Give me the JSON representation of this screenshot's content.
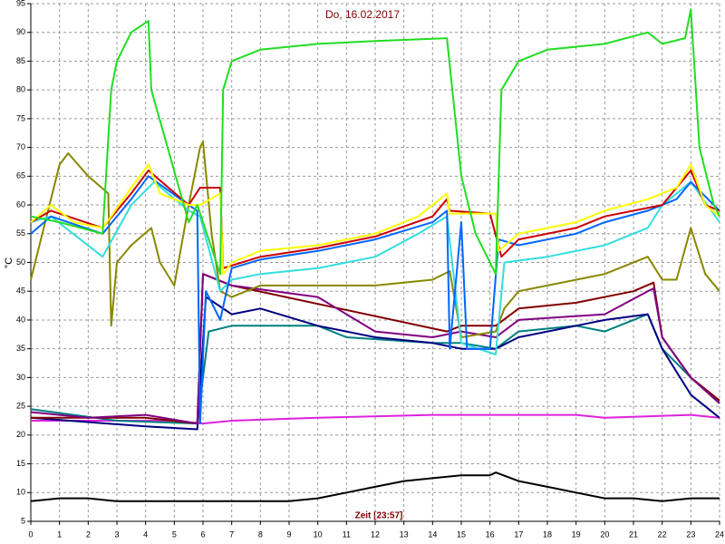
{
  "chart_data": {
    "type": "line",
    "title": "Do, 16.02.2017",
    "x_label": "Zeit [23:57]",
    "y_label": "°C",
    "xlim": [
      0,
      24
    ],
    "ylim": [
      5,
      95
    ],
    "xticks": [
      0,
      1,
      2,
      3,
      4,
      5,
      6,
      7,
      8,
      9,
      10,
      11,
      12,
      13,
      14,
      15,
      16,
      17,
      18,
      19,
      20,
      21,
      22,
      23,
      24
    ],
    "yticks": [
      5,
      10,
      15,
      20,
      25,
      30,
      35,
      40,
      45,
      50,
      55,
      60,
      65,
      70,
      75,
      80,
      85,
      90,
      95
    ],
    "grid": true,
    "series": [
      {
        "color": "#000000",
        "x": [
          0,
          1,
          2,
          3,
          4,
          5,
          6,
          7,
          8,
          9,
          10,
          11,
          12,
          13,
          14,
          15,
          16,
          16.2,
          17,
          18,
          19,
          20,
          21,
          22,
          23,
          24
        ],
        "values": [
          8.5,
          9,
          9,
          8.5,
          8.5,
          8.5,
          8.5,
          8.5,
          8.5,
          8.5,
          9,
          10,
          11,
          12,
          12.5,
          13,
          13,
          13.5,
          12,
          11,
          10,
          9,
          9,
          8.5,
          9,
          9
        ]
      },
      {
        "color": "#dd22dd",
        "x": [
          0,
          5,
          6,
          7,
          10,
          14,
          19,
          20,
          23,
          24
        ],
        "values": [
          22.5,
          22.5,
          22,
          22.5,
          23,
          23.5,
          23.5,
          23,
          23.5,
          23
        ]
      },
      {
        "color": "#008080",
        "x": [
          0,
          3,
          5.8,
          6.2,
          7,
          10,
          11,
          14,
          15,
          16.2,
          17,
          19,
          20,
          21.5,
          22,
          23,
          24
        ],
        "values": [
          24.5,
          22.5,
          22,
          38,
          39,
          39,
          37,
          36,
          36,
          35,
          38,
          39,
          38,
          41,
          35,
          30,
          25.5
        ]
      },
      {
        "color": "#000080",
        "x": [
          0,
          4,
          5.8,
          6.1,
          7,
          8,
          10,
          12,
          14,
          15,
          16.2,
          17,
          19,
          20,
          21.5,
          22,
          23,
          24
        ],
        "values": [
          23,
          21.5,
          21,
          44,
          41,
          42,
          39,
          37,
          36,
          35,
          35,
          37,
          39,
          40,
          41,
          35,
          27,
          23
        ]
      },
      {
        "color": "#800000",
        "x": [
          0,
          4,
          5.8,
          6,
          7,
          14.5,
          15,
          16.2,
          17,
          19,
          21,
          21.7,
          22,
          23,
          24
        ],
        "values": [
          23,
          23,
          22,
          48,
          46,
          38,
          39,
          39,
          42,
          43,
          45,
          46.5,
          37,
          30,
          26
        ]
      },
      {
        "color": "#800080",
        "x": [
          0,
          2,
          4,
          5.8,
          6,
          7,
          10,
          12,
          14,
          15,
          16.2,
          17,
          20,
          21.5,
          21.7,
          22,
          23,
          24
        ],
        "values": [
          24,
          23,
          23.5,
          22,
          48,
          46,
          44,
          38,
          37,
          38,
          37,
          40,
          41,
          45,
          45.5,
          37,
          30,
          25.5
        ]
      },
      {
        "color": "#888800",
        "x": [
          0,
          1,
          1.3,
          2,
          2.7,
          2.8,
          3,
          3.5,
          4.2,
          4.5,
          5,
          5.5,
          5.9,
          6,
          6.3,
          6.6,
          7,
          8,
          10,
          12,
          14,
          14.6,
          15,
          16.2,
          16.5,
          17,
          18,
          20,
          21.5,
          22,
          22.5,
          23,
          23.5,
          24
        ],
        "values": [
          47,
          67,
          69,
          65,
          62,
          39,
          50,
          53,
          56,
          50,
          46,
          60,
          70,
          71,
          55,
          45,
          44,
          46,
          46,
          46,
          47,
          48.5,
          37,
          38,
          42,
          45,
          46,
          48,
          51,
          47,
          47,
          56,
          48,
          45
        ]
      },
      {
        "color": "#33dddd",
        "x": [
          0,
          0.7,
          2.5,
          3.5,
          4.3,
          5.5,
          5.9,
          6.6,
          7,
          8,
          10,
          12,
          13.5,
          14.5,
          15,
          16.2,
          16.5,
          18,
          20,
          21.5,
          22,
          23,
          24
        ],
        "values": [
          57,
          58,
          51,
          60,
          64,
          59,
          58,
          45,
          47,
          48,
          49,
          51,
          55,
          58,
          36,
          34,
          50,
          51,
          53,
          56,
          60,
          64,
          57
        ]
      },
      {
        "color": "#0066ff",
        "x": [
          0,
          0.7,
          2.5,
          3.5,
          4.1,
          5.5,
          5.8,
          5.9,
          6.1,
          6.6,
          7,
          8,
          10,
          12,
          14,
          14.5,
          14.6,
          15,
          15.2,
          16,
          16.3,
          17,
          19,
          20,
          21.5,
          22.5,
          23,
          24
        ],
        "values": [
          55,
          58,
          55,
          61,
          65,
          60,
          59,
          22,
          45,
          40,
          49,
          50.5,
          52,
          54,
          57,
          59,
          35,
          57,
          35,
          35,
          54,
          53,
          55,
          57,
          59,
          61,
          64,
          59
        ]
      },
      {
        "color": "#cc0000",
        "x": [
          0,
          0.7,
          2.5,
          3.5,
          4.1,
          5.5,
          5.9,
          6.6,
          6.7,
          8,
          10,
          12,
          14,
          14.5,
          14.6,
          16,
          16.4,
          17,
          19,
          20,
          22,
          23,
          23.5,
          24
        ],
        "values": [
          57,
          59,
          56,
          62,
          66,
          60,
          63,
          63,
          49,
          51,
          52.5,
          54.5,
          58,
          61,
          59,
          58.5,
          51,
          54,
          56,
          58,
          60,
          66,
          60,
          59
        ]
      },
      {
        "color": "#ffff00",
        "x": [
          0,
          0.7,
          1.5,
          2.5,
          2.8,
          3.5,
          4.1,
          4.5,
          5.5,
          5.9,
          6.6,
          6.7,
          7,
          8,
          10,
          12,
          13.5,
          14.5,
          14.6,
          16.2,
          16.3,
          17,
          19,
          20,
          21.5,
          22.5,
          23,
          23.5,
          24
        ],
        "values": [
          57,
          60,
          57,
          56,
          58,
          63,
          67,
          62,
          60,
          60,
          62,
          48,
          50,
          52,
          53,
          55,
          58,
          62,
          58.5,
          58.5,
          52,
          55,
          57,
          59,
          61,
          63,
          67,
          60,
          58
        ]
      },
      {
        "color": "#22dd22",
        "x": [
          0,
          1,
          2.5,
          2.8,
          3,
          3.5,
          4.1,
          4.2,
          5.5,
          5.8,
          6.6,
          6.7,
          7,
          8,
          10,
          12,
          14.5,
          15,
          15.5,
          16.2,
          16.4,
          17,
          18,
          20,
          21.5,
          22,
          22.8,
          23,
          23.3,
          23.8,
          24
        ],
        "values": [
          58,
          57,
          55,
          80,
          85,
          90,
          92,
          80,
          57,
          60,
          48,
          80,
          85,
          87,
          88,
          88.5,
          89,
          65,
          55,
          48,
          80,
          85,
          87,
          88,
          90,
          88,
          89,
          94,
          70,
          60,
          58
        ]
      }
    ]
  }
}
